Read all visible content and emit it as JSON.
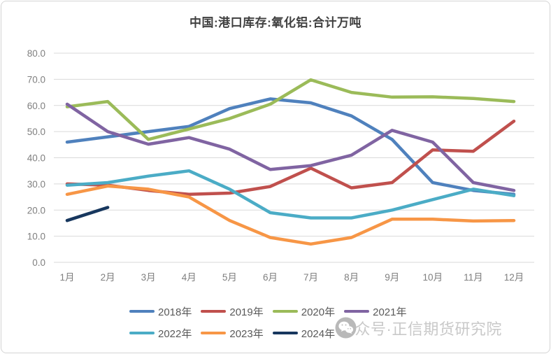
{
  "title": "中国:港口库存:氧化铝:合计万吨",
  "watermark": {
    "icon": "wechat-icon",
    "text": "公众号·正信期货研究院"
  },
  "chart_data": {
    "type": "line",
    "title": "中国:港口库存:氧化铝:合计万吨",
    "categories": [
      "1月",
      "2月",
      "3月",
      "4月",
      "5月",
      "6月",
      "7月",
      "8月",
      "9月",
      "10月",
      "11月",
      "12月"
    ],
    "series": [
      {
        "name": "2018年",
        "color": "#4F81BD",
        "values": [
          46,
          48,
          50,
          52,
          58.8,
          62.5,
          61,
          56,
          47,
          30.5,
          27.5,
          26
        ]
      },
      {
        "name": "2019年",
        "color": "#C0504D",
        "values": [
          30,
          29.5,
          27.5,
          26,
          26.5,
          29,
          36,
          28.5,
          30.5,
          43,
          42.5,
          54
        ]
      },
      {
        "name": "2020年",
        "color": "#9BBB59",
        "values": [
          59.5,
          61.5,
          47,
          51,
          55,
          60.5,
          69.8,
          65,
          63.2,
          63.3,
          62.7,
          61.5
        ]
      },
      {
        "name": "2021年",
        "color": "#8064A2",
        "values": [
          60.5,
          50,
          45.2,
          47.7,
          43.3,
          35.5,
          37,
          41,
          50.5,
          46,
          30.5,
          27.5
        ]
      },
      {
        "name": "2022年",
        "color": "#4BACC6",
        "values": [
          29.5,
          30.5,
          33,
          35,
          28,
          19,
          17,
          17,
          20,
          24,
          28,
          25.5
        ]
      },
      {
        "name": "2023年",
        "color": "#F79646",
        "values": [
          26,
          29.2,
          28,
          25,
          16,
          9.5,
          7,
          9.5,
          16.5,
          16.5,
          15.8,
          16
        ]
      },
      {
        "name": "2024年",
        "color": "#17375E",
        "values": [
          16,
          21,
          null,
          null,
          null,
          null,
          null,
          null,
          null,
          null,
          null,
          null
        ]
      }
    ],
    "ylim": [
      0,
      80
    ],
    "ytick_step": 10,
    "ytick_format": "one_decimal",
    "grid": "horizontal",
    "legend_position": "bottom"
  }
}
